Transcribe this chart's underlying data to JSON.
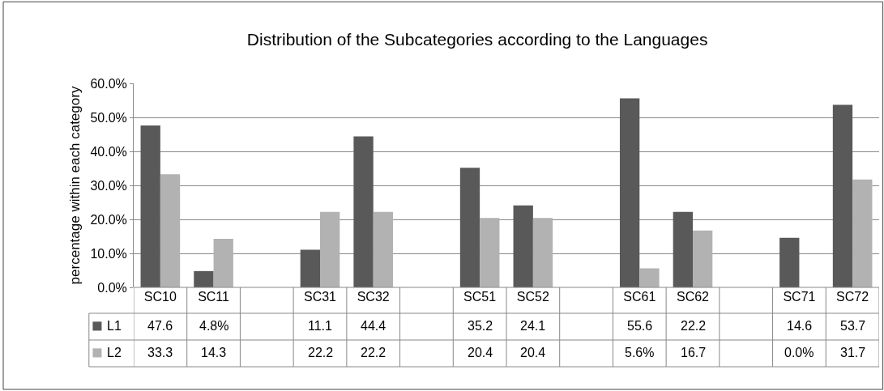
{
  "chart_data": {
    "type": "bar",
    "title": "Distribution of the Subcategories according to the Languages",
    "ylabel": "percentage within each category",
    "categories": [
      "SC10",
      "SC11",
      null,
      "SC31",
      "SC32",
      null,
      "SC51",
      "SC52",
      null,
      "SC61",
      "SC62",
      null,
      "SC71",
      "SC72"
    ],
    "series": [
      {
        "name": "L1",
        "color": "#595959",
        "values": [
          47.6,
          4.8,
          null,
          11.1,
          44.4,
          null,
          35.2,
          24.1,
          null,
          55.6,
          22.2,
          null,
          14.6,
          53.7
        ],
        "value_labels": [
          "47.6",
          "4.8%",
          null,
          "11.1",
          "44.4",
          null,
          "35.2",
          "24.1",
          null,
          "55.6",
          "22.2",
          null,
          "14.6",
          "53.7"
        ]
      },
      {
        "name": "L2",
        "color": "#b2b2b2",
        "values": [
          33.3,
          14.3,
          null,
          22.2,
          22.2,
          null,
          20.4,
          20.4,
          null,
          5.6,
          16.7,
          null,
          0.0,
          31.7
        ],
        "value_labels": [
          "33.3",
          "14.3",
          null,
          "22.2",
          "22.2",
          null,
          "20.4",
          "20.4",
          null,
          "5.6%",
          "16.7",
          null,
          "0.0%",
          "31.7"
        ]
      }
    ],
    "ylim": [
      0,
      60
    ],
    "yticks": [
      {
        "value": 0,
        "label": "0.0%"
      },
      {
        "value": 10,
        "label": "10.0%"
      },
      {
        "value": 20,
        "label": "20.0%"
      },
      {
        "value": 30,
        "label": "30.0%"
      },
      {
        "value": 40,
        "label": "40.0%"
      },
      {
        "value": 50,
        "label": "50.0%"
      },
      {
        "value": 60,
        "label": "60.0%"
      }
    ],
    "grid": "y",
    "legend": "bottom left"
  }
}
